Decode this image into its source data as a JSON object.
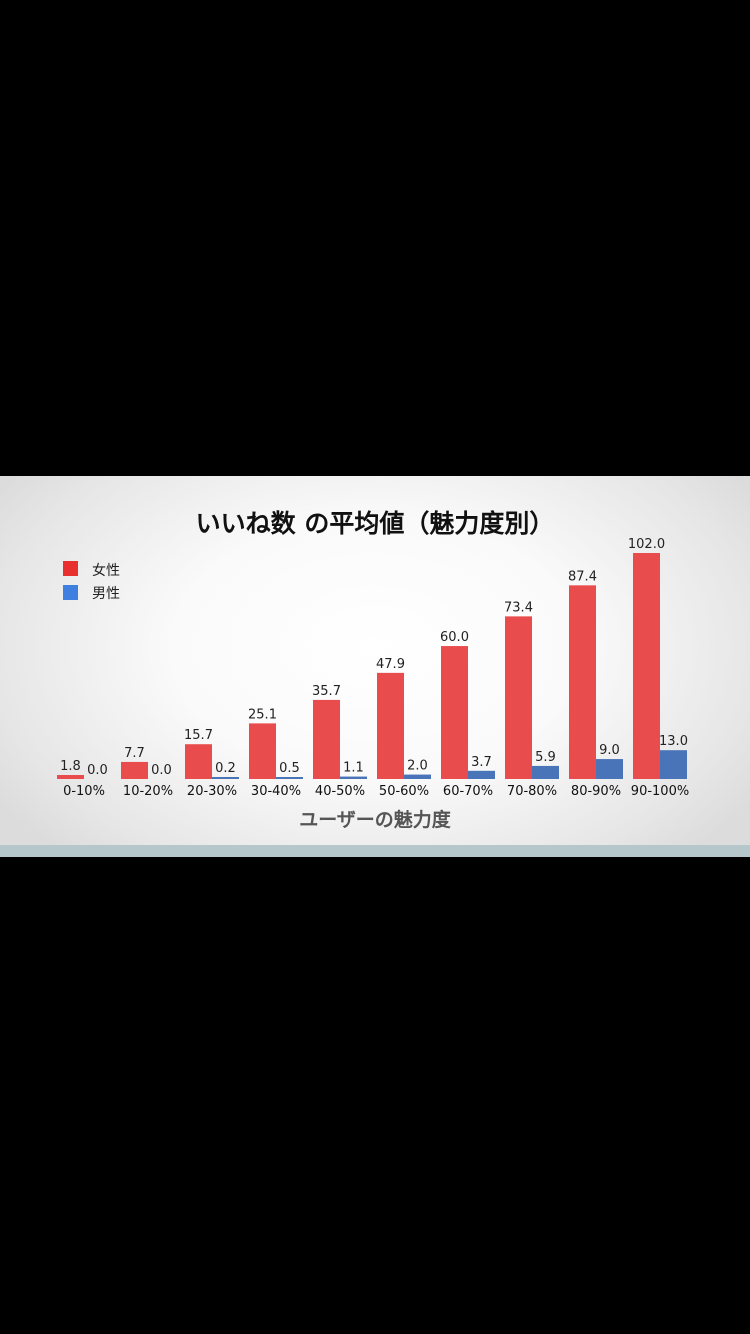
{
  "chart_data": {
    "type": "bar",
    "title": "いいね数 の平均値（魅力度別）",
    "xlabel": "ユーザーの魅力度",
    "ylabel": "",
    "categories": [
      "0-10%",
      "10-20%",
      "20-30%",
      "30-40%",
      "40-50%",
      "50-60%",
      "60-70%",
      "70-80%",
      "80-90%",
      "90-100%"
    ],
    "series": [
      {
        "name": "女性",
        "color": "#e94c4c",
        "values": [
          1.8,
          7.7,
          15.7,
          25.1,
          35.7,
          47.9,
          60.0,
          73.4,
          87.4,
          102.0
        ],
        "labels": [
          "1.8",
          "7.7",
          "15.7",
          "25.1",
          "35.7",
          "47.9",
          "60.0",
          "73.4",
          "87.4",
          "102.0"
        ]
      },
      {
        "name": "男性",
        "color": "#4a74b8",
        "values": [
          0.0,
          0.0,
          0.2,
          0.5,
          1.1,
          2.0,
          3.7,
          5.9,
          9.0,
          13.0
        ],
        "labels": [
          "0.0",
          "0.0",
          "0.2",
          "0.5",
          "1.1",
          "2.0",
          "3.7",
          "5.9",
          "9.0",
          "13.0"
        ]
      }
    ],
    "legend_colors": [
      "#e8312e",
      "#3f7fe0"
    ],
    "ylim": [
      0,
      102
    ],
    "grid": false,
    "legend_position": "top-left"
  }
}
